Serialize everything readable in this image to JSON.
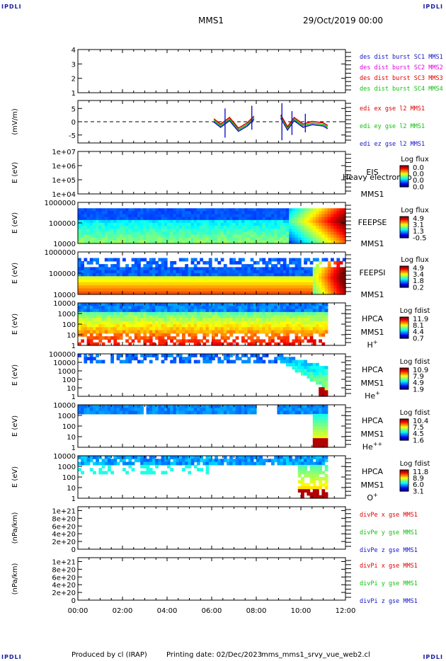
{
  "corner_labels": {
    "top_left": "IPDLI",
    "top_right": "IPDLI",
    "bottom_left": "IPDLI",
    "bottom_right": "IPDLI"
  },
  "header": {
    "spacecraft": "MMS1",
    "datetime": "29/Oct/2019 00:00"
  },
  "footer": {
    "produced": "Produced by cl (IRAP)",
    "printing": "Printing date: 02/Dec/2023",
    "script": "mms_mms1_srvy_vue_web2.cl"
  },
  "x_axis": {
    "ticks": [
      "00:00",
      "02:00",
      "04:00",
      "06:00",
      "08:00",
      "10:00",
      "12:00"
    ]
  },
  "colors": {
    "mms1": "#1414c8",
    "mms2": "#e000e0",
    "mms3": "#e00000",
    "mms4": "#10c010",
    "red": "#e00000",
    "green": "#10c010",
    "blue": "#1414c8"
  },
  "chart_data": [
    {
      "type": "line",
      "panel": "des-dist-burst",
      "ylabel": "",
      "yticks": [
        "1",
        "2",
        "3",
        "4"
      ],
      "ylim": [
        1,
        4
      ],
      "legend": [
        {
          "name": "des dist burst SC1 MMS1",
          "color": "#1414c8"
        },
        {
          "name": "des dist burst SC2 MMS2",
          "color": "#e000e0"
        },
        {
          "name": "des dist burst SC3 MMS3",
          "color": "#e00000"
        },
        {
          "name": "des dist burst SC4 MMS4",
          "color": "#10c010"
        }
      ]
    },
    {
      "type": "line",
      "panel": "edi-e",
      "ylabel": "(mV/m)",
      "yticks": [
        "-5",
        "0",
        "5"
      ],
      "ylim": [
        -8,
        8
      ],
      "legend": [
        {
          "name": "edi ex gse l2 MMS1",
          "color": "#e00000"
        },
        {
          "name": "edi ey gse l2 MMS1",
          "color": "#10c010"
        },
        {
          "name": "edi ez gse l2 MMS1",
          "color": "#1414c8"
        }
      ],
      "series": [
        {
          "name": "edi",
          "x_hours": [
            6.1,
            6.4,
            6.8,
            7.2,
            7.6,
            7.9,
            9.1,
            9.4,
            9.7,
            10.1,
            10.5,
            11.0,
            11.2
          ],
          "y": [
            0.5,
            -1.5,
            1.0,
            -3.0,
            -1.0,
            1.5,
            2.0,
            -2.5,
            1.0,
            -1.5,
            -0.5,
            -1.0,
            -2.0
          ]
        }
      ]
    },
    {
      "type": "heatmap",
      "panel": "EIS",
      "ylabel": "E (eV)",
      "yticks": [
        "1e+04",
        "1e+05",
        "1e+06",
        "1e+07"
      ],
      "right_labels": [
        "EIS",
        "MMS1"
      ],
      "overlay_text": "Heavy electron to",
      "colorbar": {
        "title": "Log flux",
        "ticks": [
          "0.0",
          "0.0",
          "0.0",
          "0.0"
        ]
      }
    },
    {
      "type": "heatmap",
      "panel": "FEEPSE",
      "ylabel": "E (eV)",
      "yticks": [
        "10000",
        "100000",
        "1000000"
      ],
      "right_labels": [
        "FEEPSE",
        "MMS1"
      ],
      "colorbar": {
        "title": "Log flux",
        "ticks": [
          "4.9",
          "3.1",
          "1.3",
          "-0.5"
        ]
      }
    },
    {
      "type": "heatmap",
      "panel": "FEEPSI",
      "ylabel": "E (eV)",
      "yticks": [
        "10000",
        "100000",
        "1000000"
      ],
      "right_labels": [
        "FEEPSI",
        "MMS1"
      ],
      "colorbar": {
        "title": "Log flux",
        "ticks": [
          "4.9",
          "3.4",
          "1.8",
          "0.2"
        ]
      }
    },
    {
      "type": "heatmap",
      "panel": "HPCA-H",
      "ylabel": "E (eV)",
      "yticks": [
        "1",
        "10",
        "100",
        "1000",
        "10000"
      ],
      "right_labels": [
        "HPCA",
        "MMS1",
        "H+"
      ],
      "colorbar": {
        "title": "Log fdist",
        "ticks": [
          "11.9",
          "8.1",
          "4.4",
          "0.7"
        ]
      }
    },
    {
      "type": "heatmap",
      "panel": "HPCA-He",
      "ylabel": "E (eV)",
      "yticks": [
        "1",
        "10",
        "100",
        "1000",
        "10000",
        "100000"
      ],
      "right_labels": [
        "HPCA",
        "MMS1",
        "He+"
      ],
      "colorbar": {
        "title": "Log fdist",
        "ticks": [
          "10.9",
          "7.9",
          "4.9",
          "1.9"
        ]
      }
    },
    {
      "type": "heatmap",
      "panel": "HPCA-He++",
      "ylabel": "E (eV)",
      "yticks": [
        "1",
        "10",
        "100",
        "1000",
        "10000"
      ],
      "right_labels": [
        "HPCA",
        "MMS1",
        "He++"
      ],
      "colorbar": {
        "title": "Log fdist",
        "ticks": [
          "10.4",
          "7.5",
          "4.5",
          "1.6"
        ]
      }
    },
    {
      "type": "heatmap",
      "panel": "HPCA-O",
      "ylabel": "E (eV)",
      "yticks": [
        "1",
        "10",
        "100",
        "1000",
        "10000"
      ],
      "right_labels": [
        "HPCA",
        "MMS1",
        "O+"
      ],
      "colorbar": {
        "title": "Log fdist",
        "ticks": [
          "11.8",
          "8.9",
          "6.0",
          "3.1"
        ]
      }
    },
    {
      "type": "line",
      "panel": "divPe",
      "ylabel": "(nPa/km)",
      "yticks": [
        "0",
        "2e+20",
        "4e+20",
        "6e+20",
        "8e+20",
        "1e+21"
      ],
      "ylim": [
        0,
        1.1e+21
      ],
      "legend": [
        {
          "name": "divPe x gse MMS1",
          "color": "#e00000"
        },
        {
          "name": "divPe y gse MMS1",
          "color": "#10c010"
        },
        {
          "name": "divPe z gse MMS1",
          "color": "#1414c8"
        }
      ]
    },
    {
      "type": "line",
      "panel": "divPi",
      "ylabel": "(nPa/km)",
      "yticks": [
        "0",
        "2e+20",
        "4e+20",
        "6e+20",
        "8e+20",
        "1e+21"
      ],
      "ylim": [
        0,
        1.1e+21
      ],
      "legend": [
        {
          "name": "divPi x gse MMS1",
          "color": "#e00000"
        },
        {
          "name": "divPi y gse MMS1",
          "color": "#10c010"
        },
        {
          "name": "divPi z gse MMS1",
          "color": "#1414c8"
        }
      ]
    }
  ]
}
